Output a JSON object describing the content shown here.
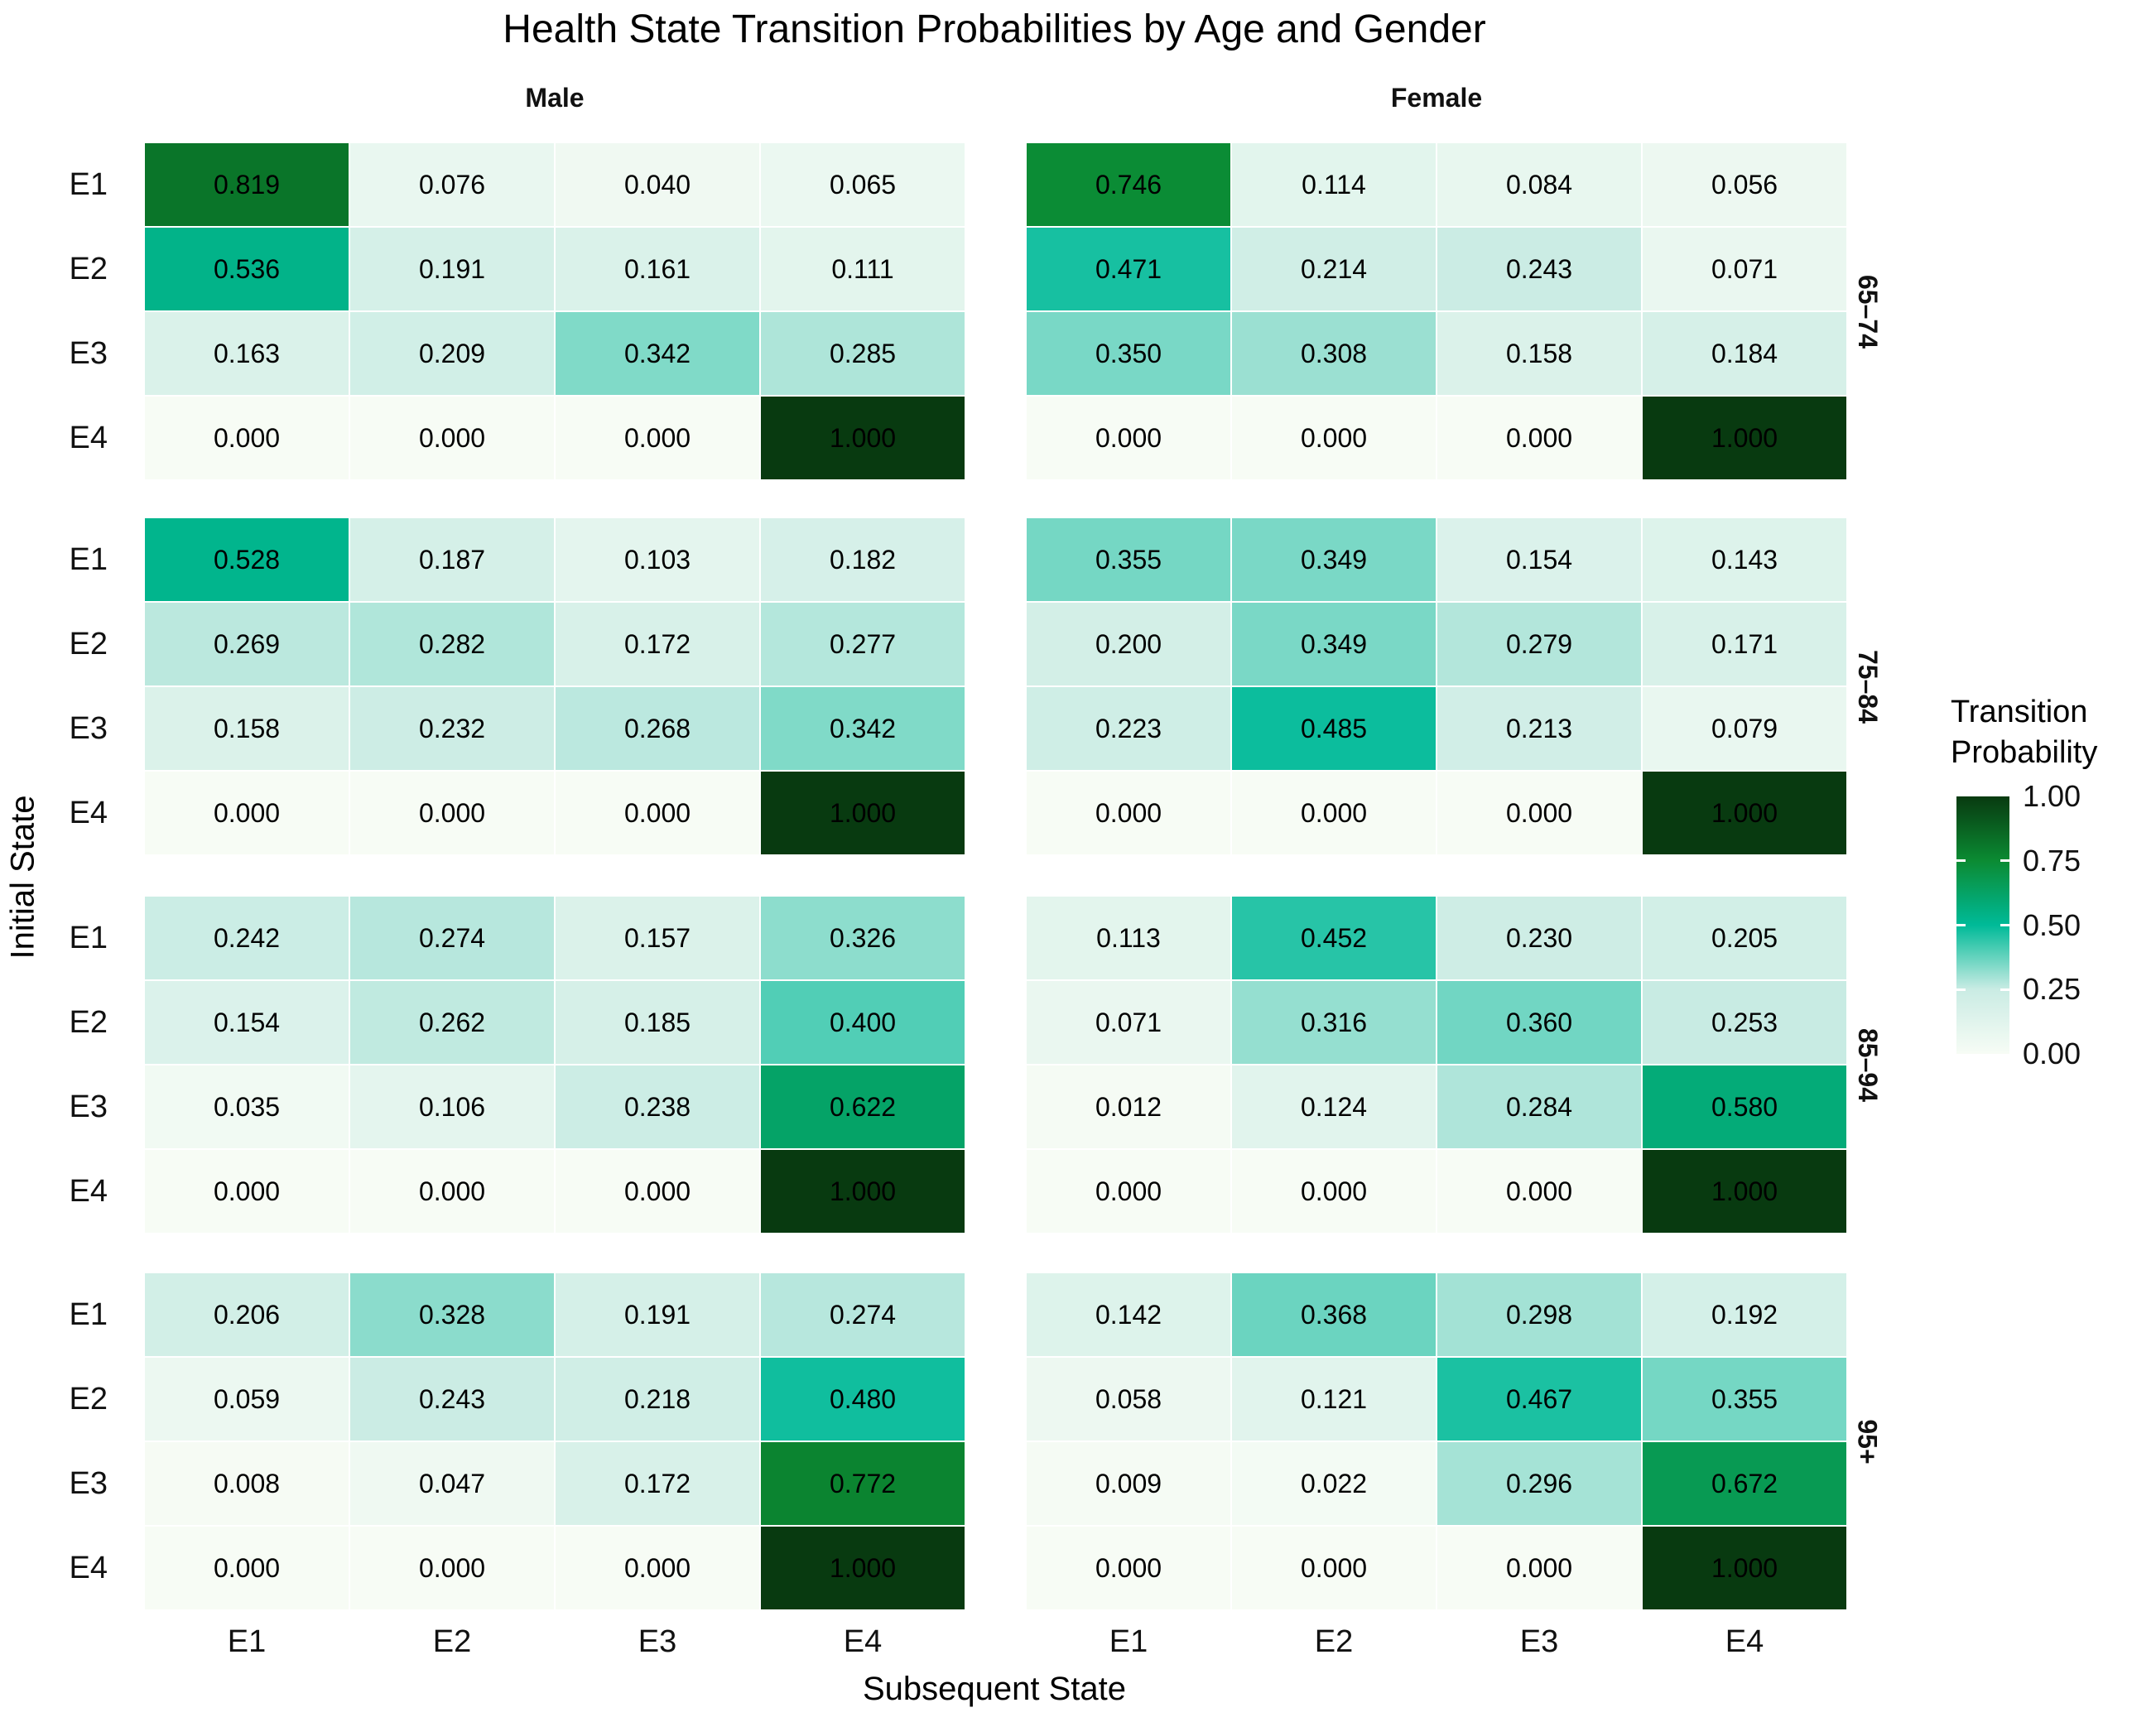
{
  "title": "Health State Transition Probabilities by Age and Gender",
  "axes": {
    "x_title": "Subsequent State",
    "y_title": "Initial State",
    "x_ticks": [
      "E1",
      "E2",
      "E3",
      "E4"
    ],
    "y_ticks": [
      "E1",
      "E2",
      "E3",
      "E4"
    ]
  },
  "legend": {
    "title": "Transition\nProbability",
    "tick_labels": [
      "1.00",
      "0.75",
      "0.50",
      "0.25",
      "0.00"
    ],
    "tick_values": [
      1.0,
      0.75,
      0.5,
      0.25,
      0.0
    ]
  },
  "colors": {
    "text": "#000000",
    "cell_border": "#ffffff",
    "scale_stops": [
      [
        0.0,
        "#f7fcf5"
      ],
      [
        0.25,
        "#caece4"
      ],
      [
        0.5,
        "#00ba98"
      ],
      [
        0.75,
        "#0b8b33"
      ],
      [
        1.0,
        "#083a10"
      ]
    ]
  },
  "chart_data": {
    "type": "heatmap",
    "title": "Health State Transition Probabilities by Age and Gender",
    "xlabel": "Subsequent State",
    "ylabel": "Initial State",
    "x_categories": [
      "E1",
      "E2",
      "E3",
      "E4"
    ],
    "y_categories": [
      "E1",
      "E2",
      "E3",
      "E4"
    ],
    "facet_col_labels": [
      "Male",
      "Female"
    ],
    "facet_row_labels": [
      "65–74",
      "75–84",
      "85–94",
      "95+"
    ],
    "legend_label": "Transition Probability",
    "value_range": [
      0.0,
      1.0
    ],
    "panels": [
      {
        "gender": "Male",
        "age_group": "65–74",
        "matrix": [
          [
            0.819,
            0.076,
            0.04,
            0.065
          ],
          [
            0.536,
            0.191,
            0.161,
            0.111
          ],
          [
            0.163,
            0.209,
            0.342,
            0.285
          ],
          [
            0.0,
            0.0,
            0.0,
            1.0
          ]
        ]
      },
      {
        "gender": "Female",
        "age_group": "65–74",
        "matrix": [
          [
            0.746,
            0.114,
            0.084,
            0.056
          ],
          [
            0.471,
            0.214,
            0.243,
            0.071
          ],
          [
            0.35,
            0.308,
            0.158,
            0.184
          ],
          [
            0.0,
            0.0,
            0.0,
            1.0
          ]
        ]
      },
      {
        "gender": "Male",
        "age_group": "75–84",
        "matrix": [
          [
            0.528,
            0.187,
            0.103,
            0.182
          ],
          [
            0.269,
            0.282,
            0.172,
            0.277
          ],
          [
            0.158,
            0.232,
            0.268,
            0.342
          ],
          [
            0.0,
            0.0,
            0.0,
            1.0
          ]
        ]
      },
      {
        "gender": "Female",
        "age_group": "75–84",
        "matrix": [
          [
            0.355,
            0.349,
            0.154,
            0.143
          ],
          [
            0.2,
            0.349,
            0.279,
            0.171
          ],
          [
            0.223,
            0.485,
            0.213,
            0.079
          ],
          [
            0.0,
            0.0,
            0.0,
            1.0
          ]
        ]
      },
      {
        "gender": "Male",
        "age_group": "85–94",
        "matrix": [
          [
            0.242,
            0.274,
            0.157,
            0.326
          ],
          [
            0.154,
            0.262,
            0.185,
            0.4
          ],
          [
            0.035,
            0.106,
            0.238,
            0.622
          ],
          [
            0.0,
            0.0,
            0.0,
            1.0
          ]
        ]
      },
      {
        "gender": "Female",
        "age_group": "85–94",
        "matrix": [
          [
            0.113,
            0.452,
            0.23,
            0.205
          ],
          [
            0.071,
            0.316,
            0.36,
            0.253
          ],
          [
            0.012,
            0.124,
            0.284,
            0.58
          ],
          [
            0.0,
            0.0,
            0.0,
            1.0
          ]
        ]
      },
      {
        "gender": "Male",
        "age_group": "95+",
        "matrix": [
          [
            0.206,
            0.328,
            0.191,
            0.274
          ],
          [
            0.059,
            0.243,
            0.218,
            0.48
          ],
          [
            0.008,
            0.047,
            0.172,
            0.772
          ],
          [
            0.0,
            0.0,
            0.0,
            1.0
          ]
        ]
      },
      {
        "gender": "Female",
        "age_group": "95+",
        "matrix": [
          [
            0.142,
            0.368,
            0.298,
            0.192
          ],
          [
            0.058,
            0.121,
            0.467,
            0.355
          ],
          [
            0.009,
            0.022,
            0.296,
            0.672
          ],
          [
            0.0,
            0.0,
            0.0,
            1.0
          ]
        ]
      }
    ]
  }
}
